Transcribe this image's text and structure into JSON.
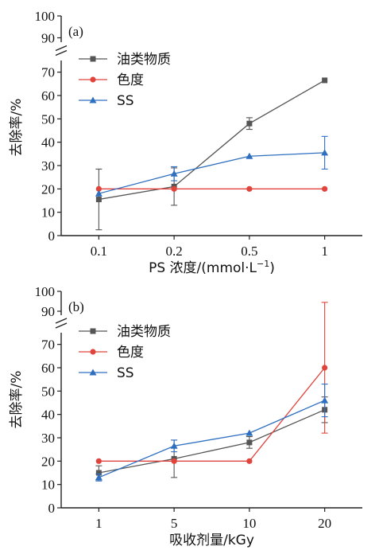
{
  "chart_data": [
    {
      "type": "line",
      "panel_label": "(a)",
      "xlabel": "PS 浓度/(mmol·L",
      "xlabel_sup": "−1",
      "xlabel_end": ")",
      "ylabel": "去除率/%",
      "categories": [
        "0.1",
        "0.2",
        "0.5",
        "1"
      ],
      "y_ticks_lower": [
        "0",
        "10",
        "20",
        "30",
        "40",
        "50",
        "60",
        "70"
      ],
      "y_ticks_upper": [
        "90",
        "100"
      ],
      "ylim_lower": [
        0,
        75
      ],
      "ylim_upper": [
        88,
        100
      ],
      "axis_break": true,
      "grid": false,
      "legend_position": "top-left",
      "series": [
        {
          "name": "油类物质",
          "color": "#555555",
          "marker": "square",
          "values": [
            15.5,
            21,
            48,
            66.5
          ],
          "errors": [
            13,
            8,
            2.5,
            0
          ]
        },
        {
          "name": "色度",
          "color": "#e0443c",
          "marker": "circle",
          "values": [
            20,
            20,
            20,
            20
          ],
          "errors": [
            0,
            0,
            0,
            0
          ]
        },
        {
          "name": "SS",
          "color": "#2f6fc0",
          "marker": "triangle",
          "values": [
            18,
            26.5,
            34,
            35.5
          ],
          "errors": [
            0,
            3,
            0,
            7
          ]
        }
      ]
    },
    {
      "type": "line",
      "panel_label": "(b)",
      "xlabel": "吸收剂量/kGy",
      "xlabel_sup": "",
      "xlabel_end": "",
      "ylabel": "去除率/%",
      "categories": [
        "1",
        "5",
        "10",
        "20"
      ],
      "y_ticks_lower": [
        "0",
        "10",
        "20",
        "30",
        "40",
        "50",
        "60",
        "70"
      ],
      "y_ticks_upper": [
        "90",
        "100"
      ],
      "ylim_lower": [
        0,
        75
      ],
      "ylim_upper": [
        88,
        100
      ],
      "axis_break": true,
      "grid": false,
      "legend_position": "top-left",
      "series": [
        {
          "name": "油类物质",
          "color": "#555555",
          "marker": "square",
          "values": [
            15,
            21,
            28,
            42
          ],
          "errors": [
            3,
            8,
            2.5,
            5.5
          ]
        },
        {
          "name": "色度",
          "color": "#e0443c",
          "marker": "circle",
          "values": [
            20,
            20,
            20,
            60
          ],
          "errors": [
            0,
            0,
            0,
            28
          ]
        },
        {
          "name": "SS",
          "color": "#2f6fc0",
          "marker": "triangle",
          "values": [
            13,
            26.5,
            32,
            46
          ],
          "errors": [
            1.5,
            2.5,
            0,
            7
          ]
        }
      ]
    }
  ]
}
